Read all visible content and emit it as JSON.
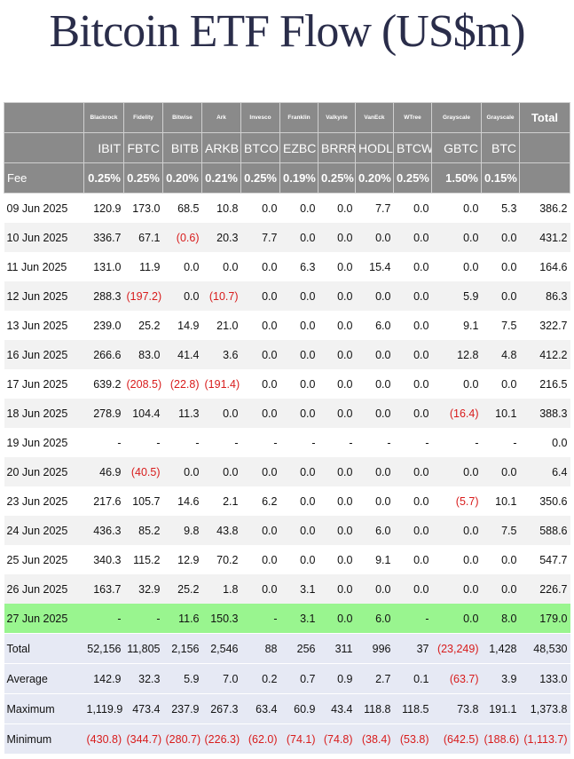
{
  "title": "Bitcoin ETF Flow (US$m)",
  "neg_color": "#d81c1c",
  "highlight_color": "#99f58f",
  "issuers": [
    "Blackrock",
    "Fidelity",
    "Bitwise",
    "Ark",
    "Invesco",
    "Franklin",
    "Valkyrie",
    "VanEck",
    "WTree",
    "Grayscale",
    "Grayscale"
  ],
  "total_label": "Total",
  "tickers": [
    "IBIT",
    "FBTC",
    "BITB",
    "ARKB",
    "BTCO",
    "EZBC",
    "BRRR",
    "HODL",
    "BTCW",
    "GBTC",
    "BTC"
  ],
  "fee_label": "Fee",
  "fees": [
    "0.25%",
    "0.25%",
    "0.20%",
    "0.21%",
    "0.25%",
    "0.19%",
    "0.25%",
    "0.20%",
    "0.25%",
    "1.50%",
    "0.15%"
  ],
  "rows": [
    {
      "date": "09 Jun 2025",
      "values": [
        "120.9",
        "173.0",
        "68.5",
        "10.8",
        "0.0",
        "0.0",
        "0.0",
        "7.7",
        "0.0",
        "0.0",
        "5.3",
        "386.2"
      ]
    },
    {
      "date": "10 Jun 2025",
      "values": [
        "336.7",
        "67.1",
        "(0.6)",
        "20.3",
        "7.7",
        "0.0",
        "0.0",
        "0.0",
        "0.0",
        "0.0",
        "0.0",
        "431.2"
      ]
    },
    {
      "date": "11 Jun 2025",
      "values": [
        "131.0",
        "11.9",
        "0.0",
        "0.0",
        "0.0",
        "6.3",
        "0.0",
        "15.4",
        "0.0",
        "0.0",
        "0.0",
        "164.6"
      ]
    },
    {
      "date": "12 Jun 2025",
      "values": [
        "288.3",
        "(197.2)",
        "0.0",
        "(10.7)",
        "0.0",
        "0.0",
        "0.0",
        "0.0",
        "0.0",
        "5.9",
        "0.0",
        "86.3"
      ]
    },
    {
      "date": "13 Jun 2025",
      "values": [
        "239.0",
        "25.2",
        "14.9",
        "21.0",
        "0.0",
        "0.0",
        "0.0",
        "6.0",
        "0.0",
        "9.1",
        "7.5",
        "322.7"
      ]
    },
    {
      "date": "16 Jun 2025",
      "values": [
        "266.6",
        "83.0",
        "41.4",
        "3.6",
        "0.0",
        "0.0",
        "0.0",
        "0.0",
        "0.0",
        "12.8",
        "4.8",
        "412.2"
      ]
    },
    {
      "date": "17 Jun 2025",
      "values": [
        "639.2",
        "(208.5)",
        "(22.8)",
        "(191.4)",
        "0.0",
        "0.0",
        "0.0",
        "0.0",
        "0.0",
        "0.0",
        "0.0",
        "216.5"
      ]
    },
    {
      "date": "18 Jun 2025",
      "values": [
        "278.9",
        "104.4",
        "11.3",
        "0.0",
        "0.0",
        "0.0",
        "0.0",
        "0.0",
        "0.0",
        "(16.4)",
        "10.1",
        "388.3"
      ]
    },
    {
      "date": "19 Jun 2025",
      "values": [
        "-",
        "-",
        "-",
        "-",
        "-",
        "-",
        "-",
        "-",
        "-",
        "-",
        "-",
        "0.0"
      ]
    },
    {
      "date": "20 Jun 2025",
      "values": [
        "46.9",
        "(40.5)",
        "0.0",
        "0.0",
        "0.0",
        "0.0",
        "0.0",
        "0.0",
        "0.0",
        "0.0",
        "0.0",
        "6.4"
      ]
    },
    {
      "date": "23 Jun 2025",
      "values": [
        "217.6",
        "105.7",
        "14.6",
        "2.1",
        "6.2",
        "0.0",
        "0.0",
        "0.0",
        "0.0",
        "(5.7)",
        "10.1",
        "350.6"
      ]
    },
    {
      "date": "24 Jun 2025",
      "values": [
        "436.3",
        "85.2",
        "9.8",
        "43.8",
        "0.0",
        "0.0",
        "0.0",
        "6.0",
        "0.0",
        "0.0",
        "7.5",
        "588.6"
      ]
    },
    {
      "date": "25 Jun 2025",
      "values": [
        "340.3",
        "115.2",
        "12.9",
        "70.2",
        "0.0",
        "0.0",
        "0.0",
        "9.1",
        "0.0",
        "0.0",
        "0.0",
        "547.7"
      ]
    },
    {
      "date": "26 Jun 2025",
      "values": [
        "163.7",
        "32.9",
        "25.2",
        "1.8",
        "0.0",
        "3.1",
        "0.0",
        "0.0",
        "0.0",
        "0.0",
        "0.0",
        "226.7"
      ]
    },
    {
      "date": "27 Jun 2025",
      "values": [
        "-",
        "-",
        "11.6",
        "150.3",
        "-",
        "3.1",
        "0.0",
        "6.0",
        "-",
        "0.0",
        "8.0",
        "179.0"
      ],
      "highlight": true
    }
  ],
  "stats": [
    {
      "label": "Total",
      "values": [
        "52,156",
        "11,805",
        "2,156",
        "2,546",
        "88",
        "256",
        "311",
        "996",
        "37",
        "(23,249)",
        "1,428",
        "48,530"
      ]
    },
    {
      "label": "Average",
      "values": [
        "142.9",
        "32.3",
        "5.9",
        "7.0",
        "0.2",
        "0.7",
        "0.9",
        "2.7",
        "0.1",
        "(63.7)",
        "3.9",
        "133.0"
      ]
    },
    {
      "label": "Maximum",
      "values": [
        "1,119.9",
        "473.4",
        "237.9",
        "267.3",
        "63.4",
        "60.9",
        "43.4",
        "118.8",
        "118.5",
        "73.8",
        "191.1",
        "1,373.8"
      ]
    },
    {
      "label": "Minimum",
      "values": [
        "(430.8)",
        "(344.7)",
        "(280.7)",
        "(226.3)",
        "(62.0)",
        "(74.1)",
        "(74.8)",
        "(38.4)",
        "(53.8)",
        "(642.5)",
        "(188.6)",
        "(1,113.7)"
      ]
    }
  ]
}
